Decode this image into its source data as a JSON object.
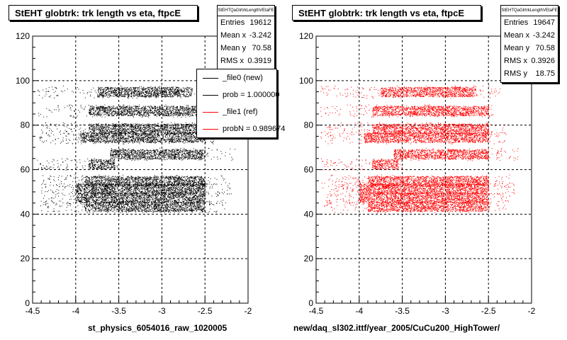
{
  "chart_data": [
    {
      "type": "scatter",
      "title": "StEHT globtrk: trk length vs eta, ftpcE",
      "xlabel": "st_physics_6054016_raw_1020005",
      "ylabel": "",
      "xlim": [
        -4.5,
        -2
      ],
      "ylim": [
        0,
        120
      ],
      "x_ticks": [
        "-4.5",
        "-4",
        "-3.5",
        "-3",
        "-2.5",
        "-2"
      ],
      "y_ticks": [
        "0",
        "20",
        "40",
        "60",
        "80",
        "100",
        "120"
      ],
      "grid": true,
      "color": "#000000",
      "bands": [
        {
          "y": 43.5,
          "x_start": -4.42,
          "x_end": -2.25,
          "dense_start": -3.9,
          "dense_end": -2.5
        },
        {
          "y": 47.5,
          "x_start": -4.4,
          "x_end": -2.25,
          "dense_start": -4.0,
          "dense_end": -2.5
        },
        {
          "y": 51.5,
          "x_start": -4.45,
          "x_end": -2.2,
          "dense_start": -4.0,
          "dense_end": -2.5
        },
        {
          "y": 55.0,
          "x_start": -4.4,
          "x_end": -2.25,
          "dense_start": -3.9,
          "dense_end": -2.5
        },
        {
          "y": 62.5,
          "x_start": -4.45,
          "x_end": -3.5,
          "dense_start": -3.85,
          "dense_end": -3.55
        },
        {
          "y": 67.0,
          "x_start": -3.6,
          "x_end": -2.15,
          "dense_start": -3.6,
          "dense_end": -2.5
        },
        {
          "y": 74.5,
          "x_start": -4.45,
          "x_end": -2.3,
          "dense_start": -3.95,
          "dense_end": -2.5
        },
        {
          "y": 78.5,
          "x_start": -4.4,
          "x_end": -2.3,
          "dense_start": -3.85,
          "dense_end": -2.5
        },
        {
          "y": 86.5,
          "x_start": -4.45,
          "x_end": -2.45,
          "dense_start": -3.85,
          "dense_end": -2.5
        },
        {
          "y": 95.0,
          "x_start": -4.45,
          "x_end": -2.35,
          "dense_start": -3.75,
          "dense_end": -2.65
        }
      ],
      "stats": {
        "name": "StEHTQaGlrtrkLengthVEtaFE",
        "rows": [
          {
            "label": "Entries",
            "value": "19612"
          },
          {
            "label": "Mean x",
            "value": "-3.242"
          },
          {
            "label": "Mean y",
            "value": "70.58"
          },
          {
            "label": "RMS x",
            "value": "0.3919"
          }
        ]
      },
      "legend": {
        "placement": "top-right",
        "entries": [
          {
            "label": "_file0 (new)",
            "color": "#000000"
          },
          {
            "label": "prob = 1.000000",
            "color": "#000000"
          },
          {
            "label": "_file1 (ref)",
            "color": "#ff0000"
          },
          {
            "label": "probN = 0.989674",
            "color": "#ff0000"
          }
        ]
      }
    },
    {
      "type": "scatter",
      "title": "StEHT globtrk: trk length vs eta, ftpcE",
      "xlabel": "new/daq_sl302.ittf/year_2005/CuCu200_HighTower/",
      "ylabel": "",
      "xlim": [
        -4.5,
        -2
      ],
      "ylim": [
        0,
        120
      ],
      "x_ticks": [
        "-4.5",
        "-4",
        "-3.5",
        "-3",
        "-2.5",
        "-2"
      ],
      "y_ticks": [
        "0",
        "20",
        "40",
        "60",
        "80",
        "100",
        "120"
      ],
      "grid": true,
      "color": "#ff0000",
      "bands": [
        {
          "y": 43.5,
          "x_start": -4.42,
          "x_end": -2.3,
          "dense_start": -3.9,
          "dense_end": -2.5
        },
        {
          "y": 47.5,
          "x_start": -4.4,
          "x_end": -2.25,
          "dense_start": -4.0,
          "dense_end": -2.5
        },
        {
          "y": 51.5,
          "x_start": -4.45,
          "x_end": -2.2,
          "dense_start": -4.0,
          "dense_end": -2.5
        },
        {
          "y": 55.0,
          "x_start": -4.4,
          "x_end": -2.25,
          "dense_start": -3.9,
          "dense_end": -2.5
        },
        {
          "y": 62.5,
          "x_start": -4.45,
          "x_end": -3.5,
          "dense_start": -3.85,
          "dense_end": -3.55
        },
        {
          "y": 67.0,
          "x_start": -3.6,
          "x_end": -2.15,
          "dense_start": -3.6,
          "dense_end": -2.5
        },
        {
          "y": 74.5,
          "x_start": -4.45,
          "x_end": -2.3,
          "dense_start": -3.95,
          "dense_end": -2.5
        },
        {
          "y": 78.5,
          "x_start": -4.4,
          "x_end": -2.3,
          "dense_start": -3.85,
          "dense_end": -2.5
        },
        {
          "y": 86.5,
          "x_start": -4.45,
          "x_end": -2.45,
          "dense_start": -3.85,
          "dense_end": -2.5
        },
        {
          "y": 95.0,
          "x_start": -4.45,
          "x_end": -2.35,
          "dense_start": -3.75,
          "dense_end": -2.65
        }
      ],
      "stats": {
        "name": "StEHTQaGlrtrkLengthVEtaFE",
        "rows": [
          {
            "label": "Entries",
            "value": "19647"
          },
          {
            "label": "Mean x",
            "value": "-3.242"
          },
          {
            "label": "Mean y",
            "value": "70.58"
          },
          {
            "label": "RMS x",
            "value": "0.3926"
          },
          {
            "label": "RMS y",
            "value": "18.75"
          }
        ]
      }
    }
  ]
}
